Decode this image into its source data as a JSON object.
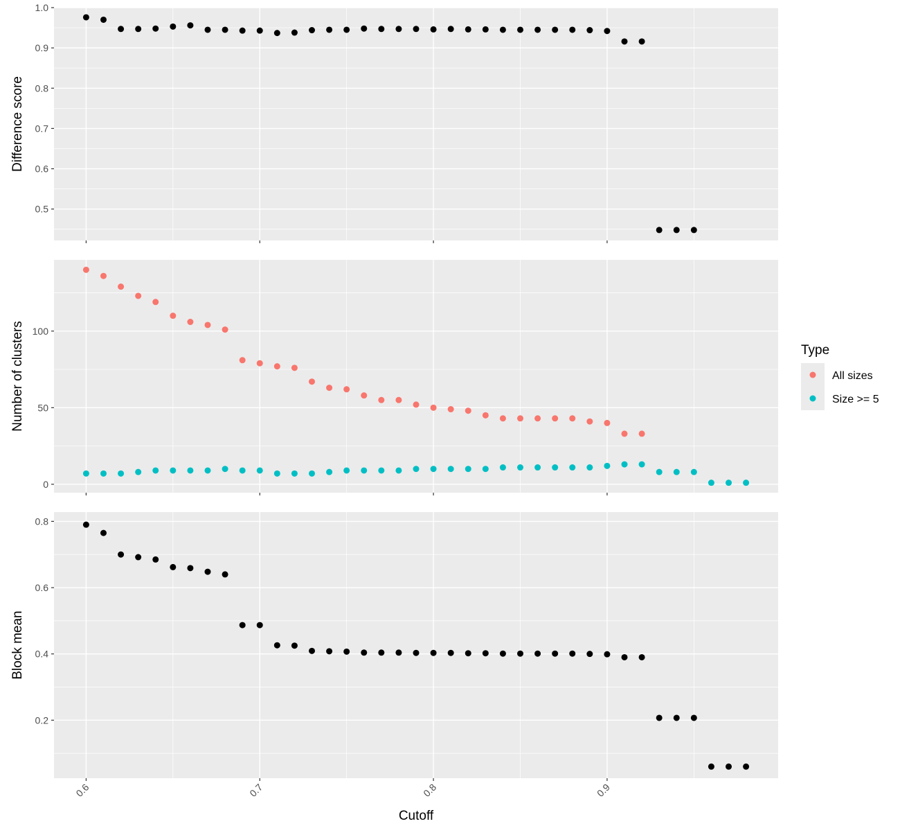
{
  "figure": {
    "x_axis_title": "Cutoff",
    "x_ticks": [
      0.6,
      0.7,
      0.8,
      0.9
    ],
    "x_tick_labels": [
      "0.6",
      "0.7",
      "0.8",
      "0.9"
    ],
    "xlim": [
      0.5815,
      0.9985
    ]
  },
  "legend": {
    "title": "Type",
    "items": [
      {
        "label": "All sizes",
        "color": "#F8766D"
      },
      {
        "label": "Size >= 5",
        "color": "#00BFC4"
      }
    ]
  },
  "chart_data": [
    {
      "type": "scatter",
      "ylabel": "Difference score",
      "ylim": [
        0.422,
        1.0
      ],
      "y_ticks": [
        0.5,
        0.6,
        0.7,
        0.8,
        0.9,
        1.0
      ],
      "y_tick_labels": [
        "0.5",
        "0.6",
        "0.7",
        "0.8",
        "0.9",
        "1.0"
      ],
      "grid": true,
      "series": [
        {
          "color": "#000000",
          "points": [
            [
              0.6,
              0.976
            ],
            [
              0.61,
              0.97
            ],
            [
              0.62,
              0.947
            ],
            [
              0.63,
              0.947
            ],
            [
              0.64,
              0.948
            ],
            [
              0.65,
              0.953
            ],
            [
              0.66,
              0.956
            ],
            [
              0.67,
              0.945
            ],
            [
              0.68,
              0.945
            ],
            [
              0.69,
              0.943
            ],
            [
              0.7,
              0.943
            ],
            [
              0.71,
              0.937
            ],
            [
              0.72,
              0.938
            ],
            [
              0.73,
              0.944
            ],
            [
              0.74,
              0.945
            ],
            [
              0.75,
              0.945
            ],
            [
              0.76,
              0.948
            ],
            [
              0.77,
              0.947
            ],
            [
              0.78,
              0.947
            ],
            [
              0.79,
              0.947
            ],
            [
              0.8,
              0.946
            ],
            [
              0.81,
              0.947
            ],
            [
              0.82,
              0.946
            ],
            [
              0.83,
              0.946
            ],
            [
              0.84,
              0.945
            ],
            [
              0.85,
              0.945
            ],
            [
              0.86,
              0.945
            ],
            [
              0.87,
              0.945
            ],
            [
              0.88,
              0.945
            ],
            [
              0.89,
              0.944
            ],
            [
              0.9,
              0.942
            ],
            [
              0.91,
              0.916
            ],
            [
              0.92,
              0.916
            ],
            [
              0.93,
              0.448
            ],
            [
              0.94,
              0.448
            ],
            [
              0.95,
              0.448
            ]
          ]
        }
      ]
    },
    {
      "type": "scatter",
      "ylabel": "Number of clusters",
      "ylim": [
        -5.5,
        146.5
      ],
      "y_ticks": [
        0,
        50,
        100
      ],
      "y_tick_labels": [
        "0",
        "50",
        "100"
      ],
      "grid": true,
      "legend": "right",
      "series": [
        {
          "name": "All sizes",
          "color": "#F8766D",
          "points": [
            [
              0.6,
              140
            ],
            [
              0.61,
              136
            ],
            [
              0.62,
              129
            ],
            [
              0.63,
              123
            ],
            [
              0.64,
              119
            ],
            [
              0.65,
              110
            ],
            [
              0.66,
              106
            ],
            [
              0.67,
              104
            ],
            [
              0.68,
              101
            ],
            [
              0.69,
              81
            ],
            [
              0.7,
              79
            ],
            [
              0.71,
              77
            ],
            [
              0.72,
              76
            ],
            [
              0.73,
              67
            ],
            [
              0.74,
              63
            ],
            [
              0.75,
              62
            ],
            [
              0.76,
              58
            ],
            [
              0.77,
              55
            ],
            [
              0.78,
              55
            ],
            [
              0.79,
              52
            ],
            [
              0.8,
              50
            ],
            [
              0.81,
              49
            ],
            [
              0.82,
              48
            ],
            [
              0.83,
              45
            ],
            [
              0.84,
              43
            ],
            [
              0.85,
              43
            ],
            [
              0.86,
              43
            ],
            [
              0.87,
              43
            ],
            [
              0.88,
              43
            ],
            [
              0.89,
              41
            ],
            [
              0.9,
              40
            ],
            [
              0.91,
              33
            ],
            [
              0.92,
              33
            ]
          ]
        },
        {
          "name": "Size >= 5",
          "color": "#00BFC4",
          "points": [
            [
              0.6,
              7
            ],
            [
              0.61,
              7
            ],
            [
              0.62,
              7
            ],
            [
              0.63,
              8
            ],
            [
              0.64,
              9
            ],
            [
              0.65,
              9
            ],
            [
              0.66,
              9
            ],
            [
              0.67,
              9
            ],
            [
              0.68,
              10
            ],
            [
              0.69,
              9
            ],
            [
              0.7,
              9
            ],
            [
              0.71,
              7
            ],
            [
              0.72,
              7
            ],
            [
              0.73,
              7
            ],
            [
              0.74,
              8
            ],
            [
              0.75,
              9
            ],
            [
              0.76,
              9
            ],
            [
              0.77,
              9
            ],
            [
              0.78,
              9
            ],
            [
              0.79,
              10
            ],
            [
              0.8,
              10
            ],
            [
              0.81,
              10
            ],
            [
              0.82,
              10
            ],
            [
              0.83,
              10
            ],
            [
              0.84,
              11
            ],
            [
              0.85,
              11
            ],
            [
              0.86,
              11
            ],
            [
              0.87,
              11
            ],
            [
              0.88,
              11
            ],
            [
              0.89,
              11
            ],
            [
              0.9,
              12
            ],
            [
              0.91,
              13
            ],
            [
              0.92,
              13
            ],
            [
              0.93,
              8
            ],
            [
              0.94,
              8
            ],
            [
              0.95,
              8
            ],
            [
              0.96,
              1
            ],
            [
              0.97,
              1
            ],
            [
              0.98,
              1
            ]
          ]
        }
      ]
    },
    {
      "type": "scatter",
      "ylabel": "Block mean",
      "ylim": [
        0.025,
        0.828
      ],
      "y_ticks": [
        0.2,
        0.4,
        0.6,
        0.8
      ],
      "y_tick_labels": [
        "0.2",
        "0.4",
        "0.6",
        "0.8"
      ],
      "grid": true,
      "series": [
        {
          "color": "#000000",
          "points": [
            [
              0.6,
              0.79
            ],
            [
              0.61,
              0.765
            ],
            [
              0.62,
              0.7
            ],
            [
              0.63,
              0.692
            ],
            [
              0.64,
              0.685
            ],
            [
              0.65,
              0.662
            ],
            [
              0.66,
              0.659
            ],
            [
              0.67,
              0.648
            ],
            [
              0.68,
              0.64
            ],
            [
              0.69,
              0.487
            ],
            [
              0.7,
              0.487
            ],
            [
              0.71,
              0.426
            ],
            [
              0.72,
              0.425
            ],
            [
              0.73,
              0.409
            ],
            [
              0.74,
              0.408
            ],
            [
              0.75,
              0.407
            ],
            [
              0.76,
              0.404
            ],
            [
              0.77,
              0.404
            ],
            [
              0.78,
              0.404
            ],
            [
              0.79,
              0.403
            ],
            [
              0.8,
              0.403
            ],
            [
              0.81,
              0.403
            ],
            [
              0.82,
              0.402
            ],
            [
              0.83,
              0.402
            ],
            [
              0.84,
              0.401
            ],
            [
              0.85,
              0.401
            ],
            [
              0.86,
              0.401
            ],
            [
              0.87,
              0.401
            ],
            [
              0.88,
              0.401
            ],
            [
              0.89,
              0.4
            ],
            [
              0.9,
              0.399
            ],
            [
              0.91,
              0.39
            ],
            [
              0.92,
              0.39
            ],
            [
              0.93,
              0.207
            ],
            [
              0.94,
              0.207
            ],
            [
              0.95,
              0.207
            ],
            [
              0.96,
              0.06
            ],
            [
              0.97,
              0.06
            ],
            [
              0.98,
              0.06
            ]
          ]
        }
      ]
    }
  ]
}
